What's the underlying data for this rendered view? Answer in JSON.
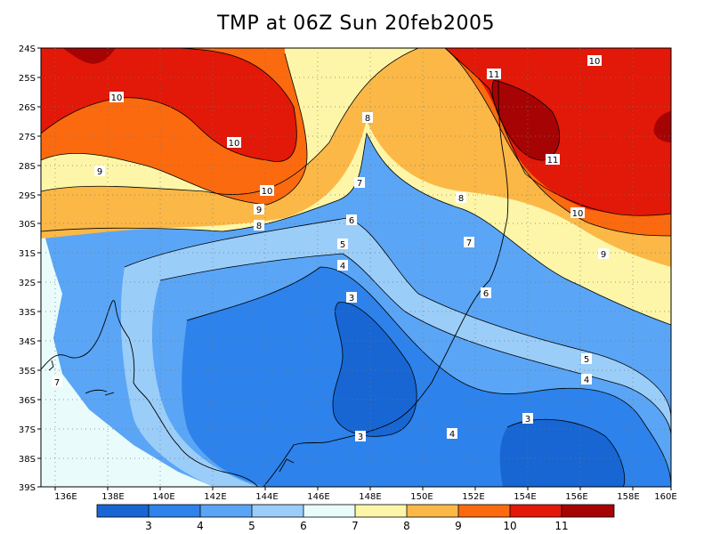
{
  "title": "TMP at 06Z Sun 20feb2005",
  "map": {
    "lat_ticks": [
      "24S",
      "25S",
      "26S",
      "27S",
      "28S",
      "29S",
      "30S",
      "31S",
      "32S",
      "33S",
      "34S",
      "35S",
      "36S",
      "37S",
      "38S",
      "39S"
    ],
    "lon_ticks": [
      "136E",
      "138E",
      "140E",
      "142E",
      "144E",
      "146E",
      "148E",
      "150E",
      "152E",
      "154E",
      "156E",
      "158E",
      "160E"
    ],
    "contour_labels": [
      {
        "text": "10"
      },
      {
        "text": "10"
      },
      {
        "text": "10"
      },
      {
        "text": "10"
      },
      {
        "text": "10"
      },
      {
        "text": "11"
      },
      {
        "text": "11"
      },
      {
        "text": "9"
      },
      {
        "text": "9"
      },
      {
        "text": "9"
      },
      {
        "text": "8"
      },
      {
        "text": "8"
      },
      {
        "text": "8"
      },
      {
        "text": "7"
      },
      {
        "text": "7"
      },
      {
        "text": "7"
      },
      {
        "text": "6"
      },
      {
        "text": "6"
      },
      {
        "text": "5"
      },
      {
        "text": "5"
      },
      {
        "text": "4"
      },
      {
        "text": "4"
      },
      {
        "text": "4"
      },
      {
        "text": "3"
      },
      {
        "text": "3"
      },
      {
        "text": "3"
      }
    ]
  },
  "colorbar": {
    "labels": [
      "3",
      "4",
      "5",
      "6",
      "7",
      "8",
      "9",
      "10",
      "11"
    ],
    "colors": [
      "#1766d4",
      "#2d82eb",
      "#5aa5f5",
      "#9bcdf9",
      "#e9fcfb",
      "#fdf6a8",
      "#fbb847",
      "#fb6a0e",
      "#e21808",
      "#a60404"
    ]
  },
  "colors": {
    "c2": "#1766d4",
    "c3": "#2d82eb",
    "c4": "#5aa5f5",
    "c5": "#9bcdf9",
    "c6": "#e9fcfb",
    "c7": "#fdf6a8",
    "c8": "#fbb847",
    "c9": "#fb6a0e",
    "c10": "#e21808",
    "c11": "#a60404"
  }
}
